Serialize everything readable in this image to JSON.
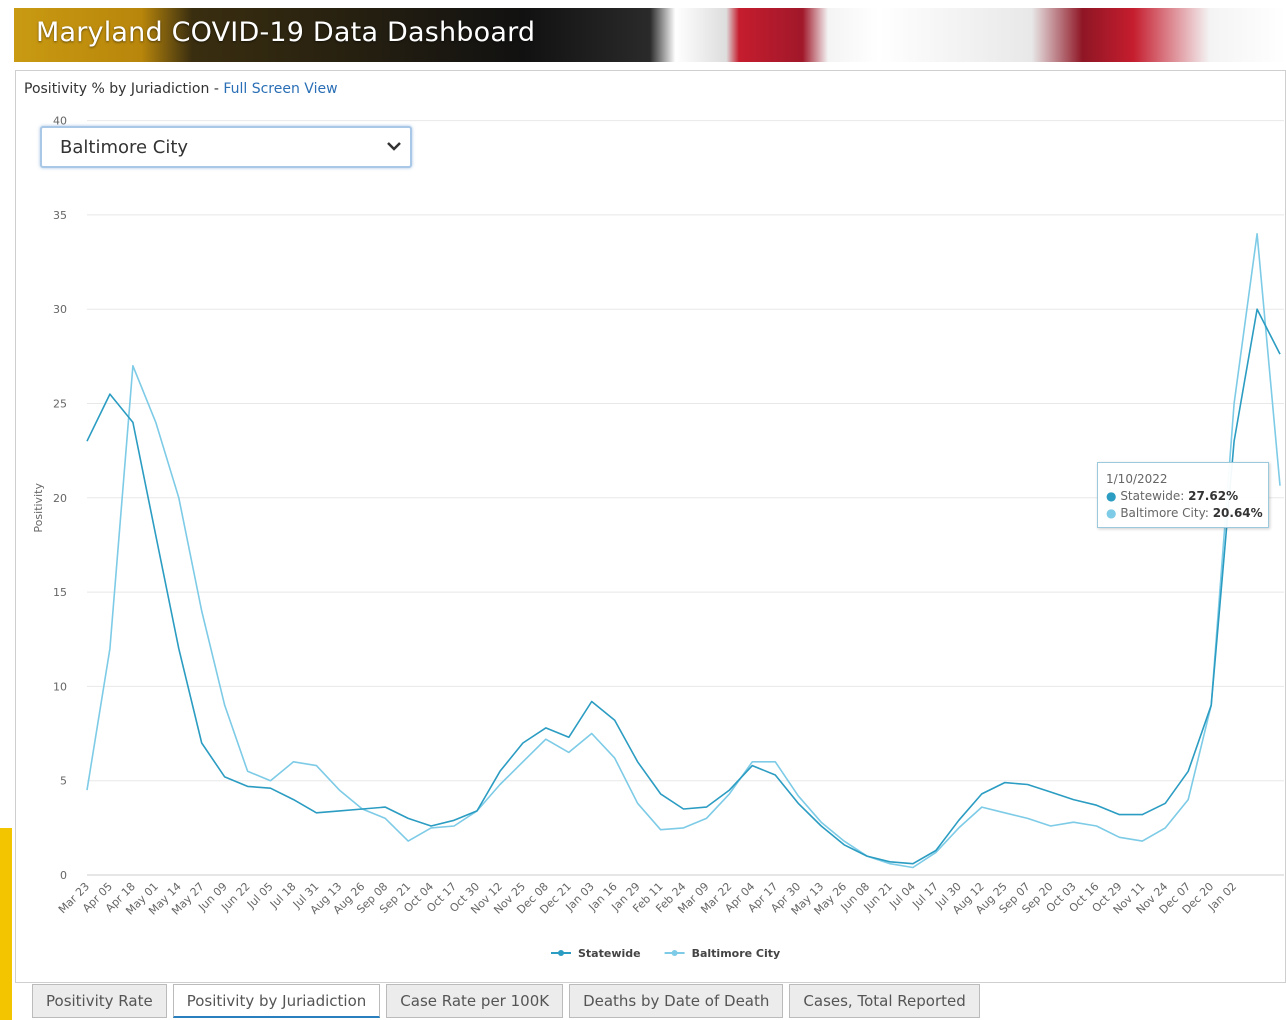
{
  "header": {
    "title": "Maryland COVID-19 Data Dashboard"
  },
  "panel": {
    "title": "Positivity % by Juriadiction -",
    "link": "Full Screen View"
  },
  "dropdown": {
    "selected": "Baltimore City"
  },
  "chart_data": {
    "type": "line",
    "y_label": "Positivity",
    "categories": [
      "Mar 23",
      "Apr 05",
      "Apr 18",
      "May 01",
      "May 14",
      "May 27",
      "Jun 09",
      "Jun 22",
      "Jul 05",
      "Jul 18",
      "Jul 31",
      "Aug 13",
      "Aug 26",
      "Sep 08",
      "Sep 21",
      "Oct 04",
      "Oct 17",
      "Oct 30",
      "Nov 12",
      "Nov 25",
      "Dec 08",
      "Dec 21",
      "Jan 03",
      "Jan 16",
      "Jan 29",
      "Feb 11",
      "Feb 24",
      "Mar 09",
      "Mar 22",
      "Apr 04",
      "Apr 17",
      "Apr 30",
      "May 13",
      "May 26",
      "Jun 08",
      "Jun 21",
      "Jul 04",
      "Jul 17",
      "Jul 30",
      "Aug 12",
      "Aug 25",
      "Sep 07",
      "Sep 20",
      "Oct 03",
      "Oct 16",
      "Oct 29",
      "Nov 11",
      "Nov 24",
      "Dec 07",
      "Dec 20",
      "Jan 02",
      null,
      null
    ],
    "series": [
      {
        "name": "Statewide",
        "color": "#2b9cc2",
        "values": [
          23,
          25.5,
          24,
          18,
          12,
          7,
          5.2,
          4.7,
          4.6,
          4,
          3.3,
          3.4,
          3.5,
          3.6,
          3,
          2.6,
          2.9,
          3.4,
          5.5,
          7,
          7.8,
          7.3,
          9.2,
          8.2,
          6,
          4.3,
          3.5,
          3.6,
          4.5,
          5.8,
          5.3,
          3.8,
          2.6,
          1.6,
          1,
          0.7,
          0.6,
          1.3,
          2.9,
          4.3,
          4.9,
          4.8,
          4.4,
          4,
          3.7,
          3.2,
          3.2,
          3.8,
          5.5,
          9,
          23,
          30,
          27.62
        ]
      },
      {
        "name": "Baltimore City",
        "color": "#7dcbe6",
        "values": [
          4.5,
          12,
          27,
          24,
          20,
          14,
          9,
          5.5,
          5,
          6,
          5.8,
          4.5,
          3.5,
          3,
          1.8,
          2.5,
          2.6,
          3.4,
          4.8,
          6,
          7.2,
          6.5,
          7.5,
          6.2,
          3.8,
          2.4,
          2.5,
          3,
          4.3,
          6,
          6,
          4.2,
          2.8,
          1.8,
          1,
          0.6,
          0.4,
          1.2,
          2.5,
          3.6,
          3.3,
          3,
          2.6,
          2.8,
          2.6,
          2,
          1.8,
          2.5,
          4,
          9,
          25,
          34,
          20.64
        ]
      }
    ],
    "ylim": [
      0,
      40
    ],
    "yticks": [
      0,
      5,
      10,
      15,
      20,
      25,
      30,
      35,
      40
    ],
    "grid": true,
    "legend": "bottom"
  },
  "tooltip": {
    "date": "1/10/2022",
    "rows": [
      {
        "label": "Statewide:",
        "value": "27.62%"
      },
      {
        "label": "Baltimore City:",
        "value": "20.64%"
      }
    ]
  },
  "tabs": {
    "items": [
      "Positivity Rate",
      "Positivity by Juriadiction",
      "Case Rate per 100K",
      "Deaths by Date of Death",
      "Cases, Total Reported"
    ],
    "active": 1
  }
}
